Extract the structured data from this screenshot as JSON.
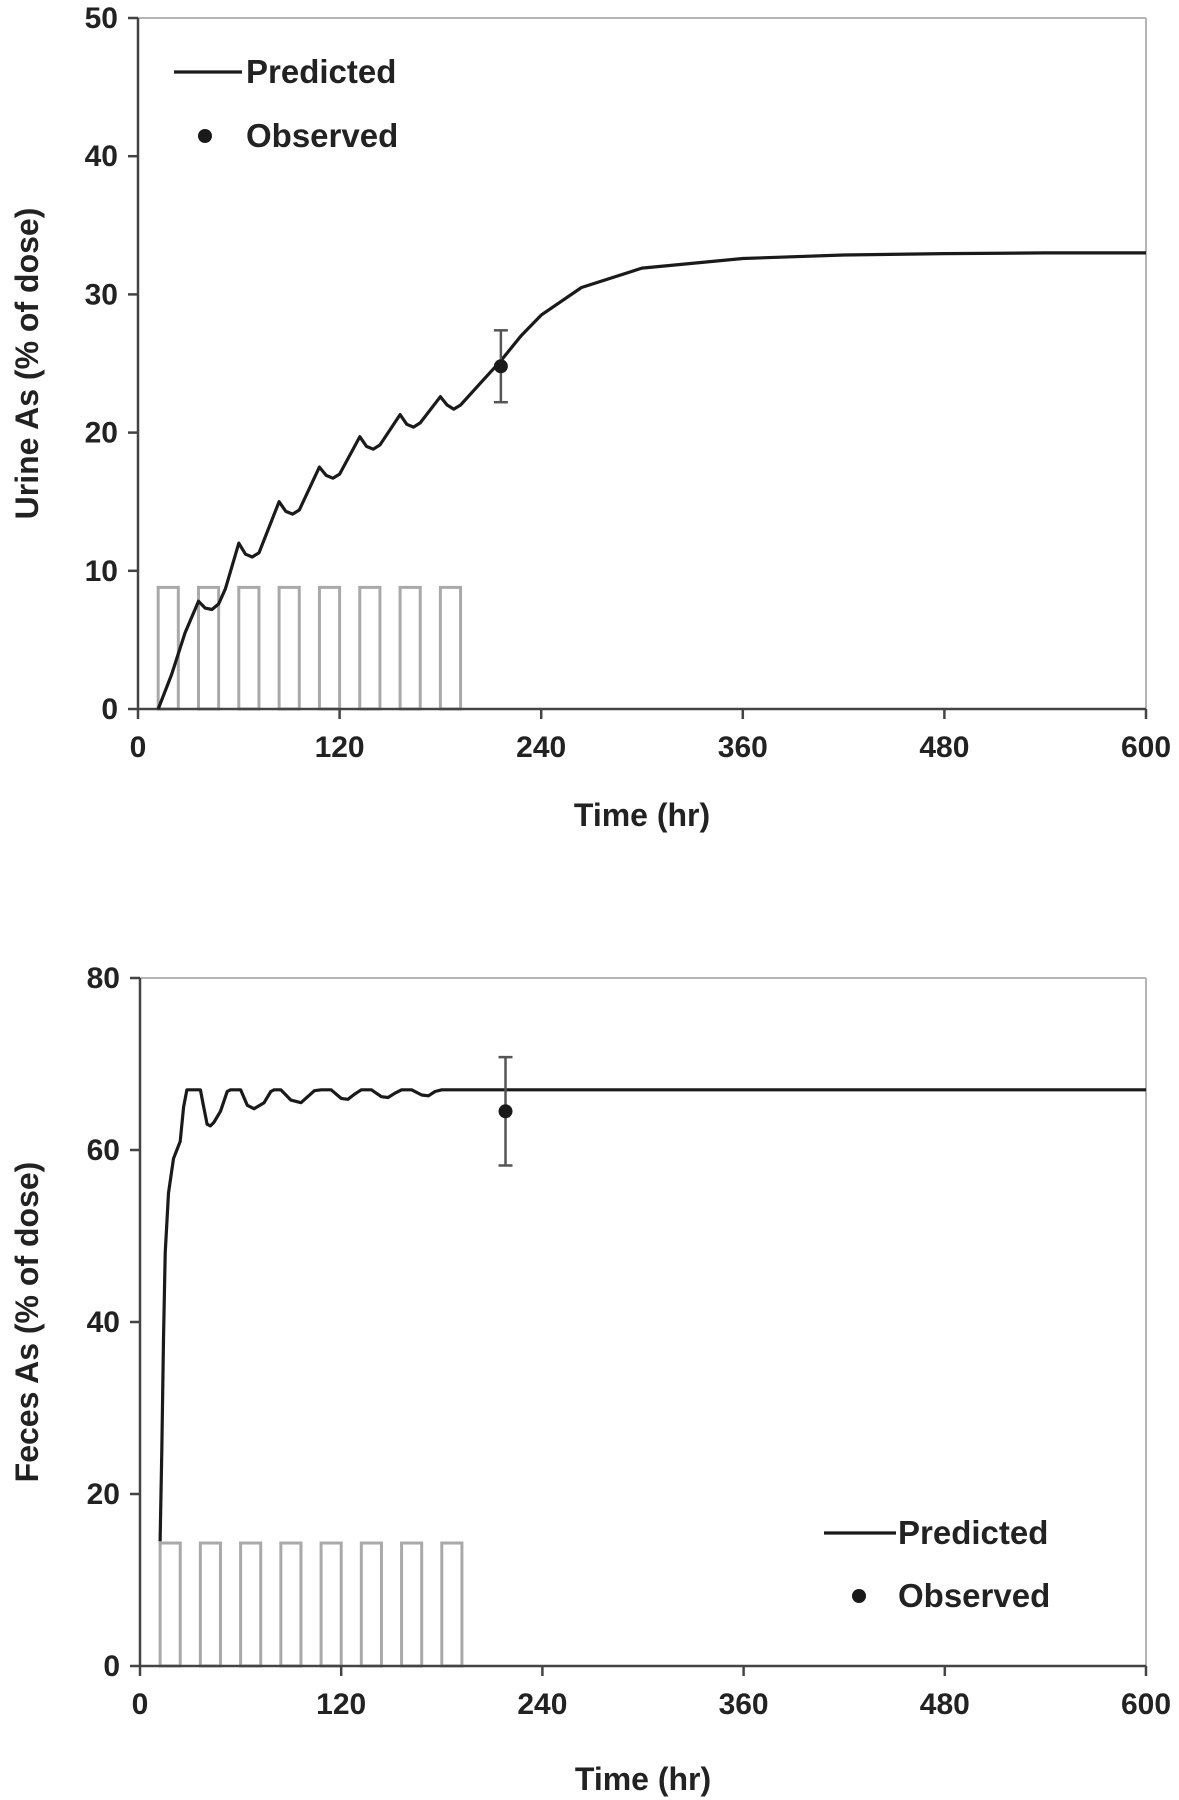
{
  "chart_data": [
    {
      "type": "line",
      "title": "",
      "xlabel": "Time (hr)",
      "ylabel": "Urine As (% of dose)",
      "xlim": [
        0,
        600
      ],
      "ylim": [
        0,
        50
      ],
      "xticks": [
        "0",
        "120",
        "240",
        "360",
        "480",
        "600"
      ],
      "yticks": [
        "0",
        "10",
        "20",
        "30",
        "40",
        "50"
      ],
      "grid": false,
      "legend": {
        "position": "top-left",
        "entries": [
          "Predicted",
          "Observed"
        ]
      },
      "series": [
        {
          "name": "Predicted",
          "style": "line",
          "x": [
            12,
            20,
            28,
            36,
            40,
            44,
            48,
            52,
            60,
            64,
            68,
            72,
            84,
            88,
            92,
            96,
            108,
            112,
            116,
            120,
            132,
            136,
            140,
            144,
            156,
            160,
            164,
            168,
            180,
            184,
            188,
            192,
            204,
            216,
            228,
            240,
            264,
            300,
            360,
            420,
            480,
            540,
            600
          ],
          "y": [
            0,
            2.5,
            5.5,
            7.8,
            7.3,
            7.2,
            7.6,
            8.7,
            12.0,
            11.2,
            11.0,
            11.3,
            15.0,
            14.3,
            14.1,
            14.4,
            17.5,
            16.9,
            16.7,
            17.0,
            19.7,
            19.0,
            18.8,
            19.1,
            21.3,
            20.6,
            20.4,
            20.7,
            22.6,
            22.0,
            21.7,
            22.0,
            23.6,
            25.2,
            27.0,
            28.5,
            30.5,
            31.9,
            32.6,
            32.85,
            32.95,
            33.0,
            33.0
          ]
        },
        {
          "name": "Observed",
          "style": "marker",
          "x": [
            216
          ],
          "y": [
            24.8
          ],
          "error": [
            2.6
          ]
        }
      ],
      "dosing_bars": {
        "x_start": [
          12,
          36,
          60,
          84,
          108,
          132,
          156,
          180
        ],
        "x_end": [
          24,
          48,
          72,
          96,
          120,
          144,
          168,
          192
        ],
        "height": 8.8
      }
    },
    {
      "type": "line",
      "title": "",
      "xlabel": "Time (hr)",
      "ylabel": "Feces As (% of dose)",
      "xlim": [
        0,
        600
      ],
      "ylim": [
        0,
        80
      ],
      "xticks": [
        "0",
        "120",
        "240",
        "360",
        "480",
        "600"
      ],
      "yticks": [
        "0",
        "20",
        "40",
        "60",
        "80"
      ],
      "grid": false,
      "legend": {
        "position": "bottom-right",
        "entries": [
          "Predicted",
          "Observed"
        ]
      },
      "series": [
        {
          "name": "Predicted",
          "style": "line",
          "x": [
            12,
            13,
            14,
            15,
            17,
            20,
            24,
            26,
            28,
            30,
            36,
            38,
            40,
            42,
            44,
            48,
            52,
            54,
            56,
            60,
            64,
            68,
            74,
            78,
            80,
            84,
            90,
            96,
            100,
            104,
            108,
            114,
            120,
            124,
            128,
            132,
            138,
            144,
            148,
            152,
            156,
            162,
            168,
            172,
            176,
            180,
            186,
            192,
            204,
            240,
            300,
            360,
            420,
            480,
            540,
            600
          ],
          "y": [
            14.5,
            25,
            38,
            48,
            55,
            59,
            61,
            65,
            67,
            67,
            67,
            65,
            63,
            62.8,
            63.2,
            64.5,
            66.8,
            67,
            67,
            67,
            65.2,
            64.8,
            65.5,
            66.8,
            67,
            67,
            65.8,
            65.5,
            66.2,
            66.9,
            67,
            67,
            66,
            65.9,
            66.5,
            67,
            67,
            66.2,
            66.1,
            66.6,
            67,
            67,
            66.4,
            66.3,
            66.8,
            67,
            67,
            67,
            67,
            67,
            67,
            67,
            67,
            67,
            67,
            67
          ]
        },
        {
          "name": "Observed",
          "style": "marker",
          "x": [
            218
          ],
          "y": [
            64.5
          ],
          "error": [
            6.3
          ]
        }
      ],
      "dosing_bars": {
        "x_start": [
          12,
          36,
          60,
          84,
          108,
          132,
          156,
          180
        ],
        "x_end": [
          24,
          48,
          72,
          96,
          120,
          144,
          168,
          192
        ],
        "height": 14.3
      }
    }
  ]
}
